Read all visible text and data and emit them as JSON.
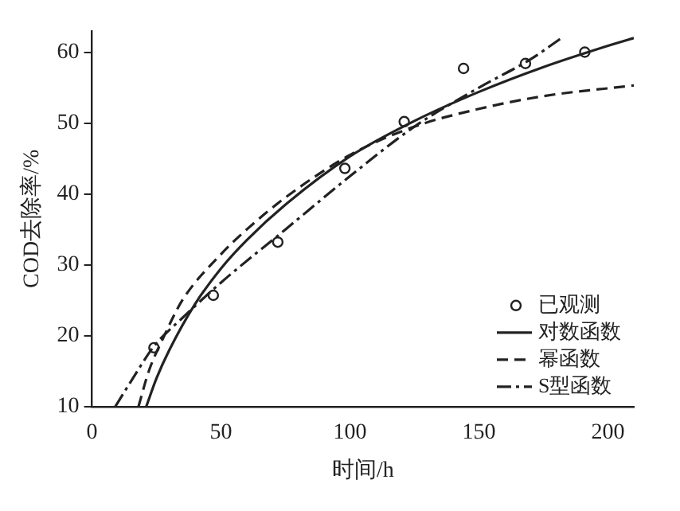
{
  "chart_data": {
    "type": "scatter",
    "xlabel": "时间/h",
    "ylabel": "COD去除率/%",
    "xlim": [
      0,
      210
    ],
    "ylim": [
      10,
      63
    ],
    "xticks": [
      0,
      50,
      100,
      150,
      200
    ],
    "yticks": [
      10,
      20,
      30,
      40,
      50,
      60
    ],
    "grid": false,
    "legend": "bottom right",
    "series": [
      {
        "name": "已观测",
        "type": "scatter",
        "marker": "circle",
        "color": "#222222",
        "x": [
          24,
          47,
          72,
          98,
          121,
          144,
          168,
          191
        ],
        "values": [
          18.3,
          25.7,
          33.2,
          43.6,
          50.2,
          57.7,
          58.4,
          60
        ]
      },
      {
        "name": "对数函数",
        "type": "line",
        "marker": "none",
        "line_style": "solid",
        "color": "#222222",
        "x": [
          21,
          25,
          30,
          40,
          50,
          60,
          75,
          100,
          125,
          150,
          175,
          200,
          210
        ],
        "values": [
          10,
          14,
          18,
          24.5,
          29.5,
          33.5,
          38.5,
          45.3,
          50.3,
          54.4,
          57.9,
          60.9,
          62
        ]
      },
      {
        "name": "幂函数",
        "type": "line",
        "marker": "none",
        "line_style": "dashed",
        "color": "#222222",
        "x": [
          18,
          22,
          28,
          35,
          50,
          60,
          75,
          100,
          125,
          150,
          175,
          210
        ],
        "values": [
          10,
          15,
          20,
          25,
          31.5,
          35,
          39.5,
          45.5,
          49.5,
          52,
          53.8,
          55.3
        ]
      },
      {
        "name": "S型函数",
        "type": "line",
        "marker": "none",
        "line_style": "dotted",
        "color": "#222222",
        "x": [
          9,
          15,
          24,
          35,
          50,
          75,
          100,
          125,
          150,
          170,
          182
        ],
        "values": [
          10,
          13.5,
          18.5,
          22.5,
          27.5,
          35,
          42.5,
          49.5,
          55,
          59,
          62
        ]
      }
    ]
  }
}
